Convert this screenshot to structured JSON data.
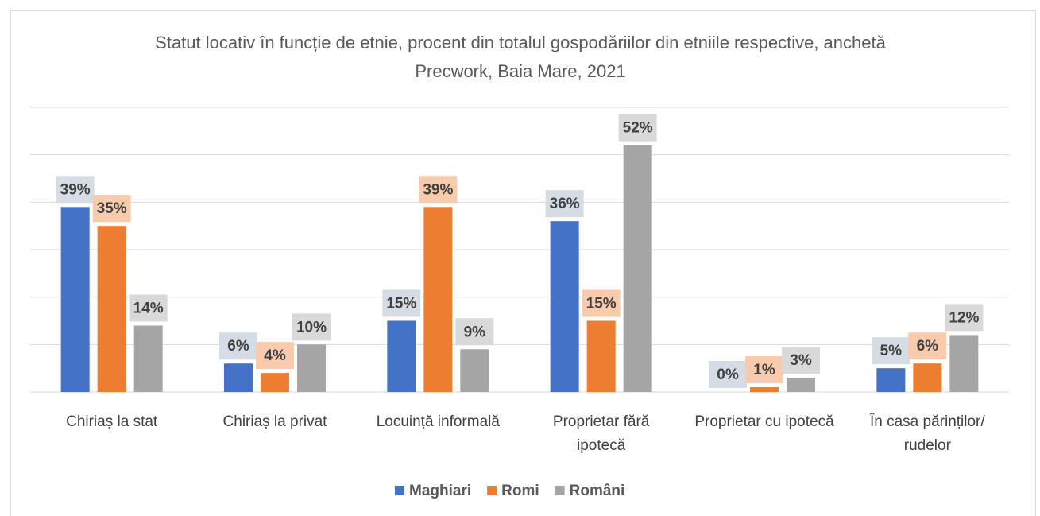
{
  "chart_data": {
    "type": "bar",
    "title": "Statut locativ în funcție de etnie, procent din totalul gospodăriilor din etniile respective, anchetă Precwork, Baia Mare, 2021",
    "categories": [
      "Chiriaș la stat",
      "Chiriaș la privat",
      "Locuință informală",
      "Proprietar fără ipotecă",
      "Proprietar cu ipotecă",
      "În casa părinților/ rudelor"
    ],
    "series": [
      {
        "name": "Maghiari",
        "color": "#4472c4",
        "label_color": "#d6dce5",
        "values": [
          39,
          6,
          15,
          36,
          0,
          5
        ],
        "value_labels": [
          "39%",
          "6%",
          "15%",
          "36%",
          "0%",
          "5%"
        ]
      },
      {
        "name": "Romi",
        "color": "#ed7d31",
        "label_color": "#f8cbad",
        "values": [
          35,
          4,
          39,
          15,
          1,
          6
        ],
        "value_labels": [
          "35%",
          "4%",
          "39%",
          "15%",
          "1%",
          "6%"
        ]
      },
      {
        "name": "Români",
        "color": "#a5a5a5",
        "label_color": "#d9d9d9",
        "values": [
          14,
          10,
          9,
          52,
          3,
          12
        ],
        "value_labels": [
          "14%",
          "10%",
          "9%",
          "52%",
          "3%",
          "12%"
        ]
      }
    ],
    "ylim": [
      0,
      60
    ],
    "yticks": [
      0,
      10,
      20,
      30,
      40,
      50,
      60
    ],
    "grid": true,
    "legend": "bottom"
  }
}
